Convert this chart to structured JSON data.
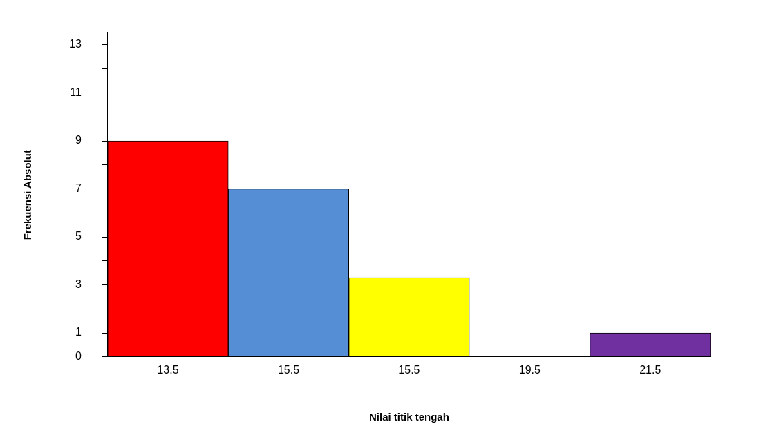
{
  "chart_data": {
    "type": "bar",
    "xlabel": "Nilai titik tengah",
    "ylabel": "Frekuensi Absolut",
    "categories": [
      "13.5",
      "15.5",
      "15.5",
      "19.5",
      "21.5"
    ],
    "values": [
      9,
      7,
      3.3,
      0,
      1
    ],
    "colors": [
      "#ff0000",
      "#558ed5",
      "#ffff00",
      "#ffffff",
      "#7030a0"
    ],
    "ylim": [
      0,
      13.5
    ],
    "yticks": [
      0,
      {
        "value": 1,
        "label": "1"
      },
      {
        "value": 2,
        "label": null
      },
      3,
      {
        "value": 4,
        "label": null
      },
      5,
      {
        "value": 6,
        "label": null
      },
      7,
      {
        "value": 8,
        "label": null
      },
      9,
      {
        "value": 10,
        "label": null
      },
      11,
      {
        "value": 12,
        "label": null
      },
      13
    ],
    "grid": false,
    "legend": false
  }
}
